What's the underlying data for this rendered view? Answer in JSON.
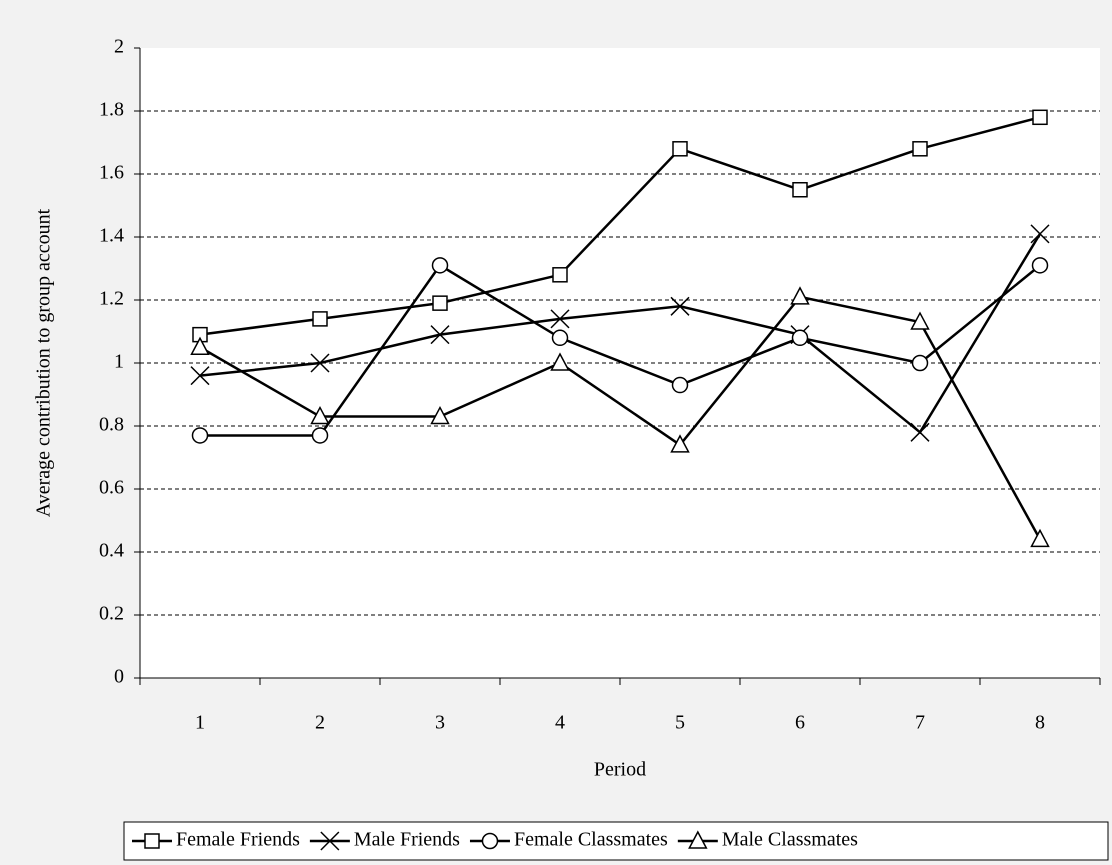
{
  "chart_data": {
    "type": "line",
    "x_label": "Period",
    "y_label": "Average contribution to group account",
    "categories": [
      "1",
      "2",
      "3",
      "4",
      "5",
      "6",
      "7",
      "8"
    ],
    "series": [
      {
        "name": "Female Friends",
        "color": "#000000",
        "marker": "square",
        "values": [
          1.09,
          1.14,
          1.19,
          1.28,
          1.68,
          1.55,
          1.68,
          1.78
        ]
      },
      {
        "name": "Male Friends",
        "color": "#000000",
        "marker": "x",
        "values": [
          0.96,
          1.0,
          1.09,
          1.14,
          1.18,
          1.09,
          0.78,
          1.41
        ]
      },
      {
        "name": "Female Classmates",
        "color": "#000000",
        "marker": "circle",
        "values": [
          0.77,
          0.77,
          1.31,
          1.08,
          0.93,
          1.08,
          1.0,
          1.31
        ]
      },
      {
        "name": "Male Classmates",
        "color": "#000000",
        "marker": "triangle",
        "values": [
          1.05,
          0.83,
          0.83,
          1.0,
          0.74,
          1.21,
          1.13,
          0.44
        ]
      }
    ],
    "ylim": [
      0,
      2
    ],
    "yticks": [
      0,
      0.2,
      0.4,
      0.6,
      0.8,
      1,
      1.2,
      1.4,
      1.6,
      1.8,
      2
    ],
    "grid": true,
    "legend": "bottom"
  }
}
